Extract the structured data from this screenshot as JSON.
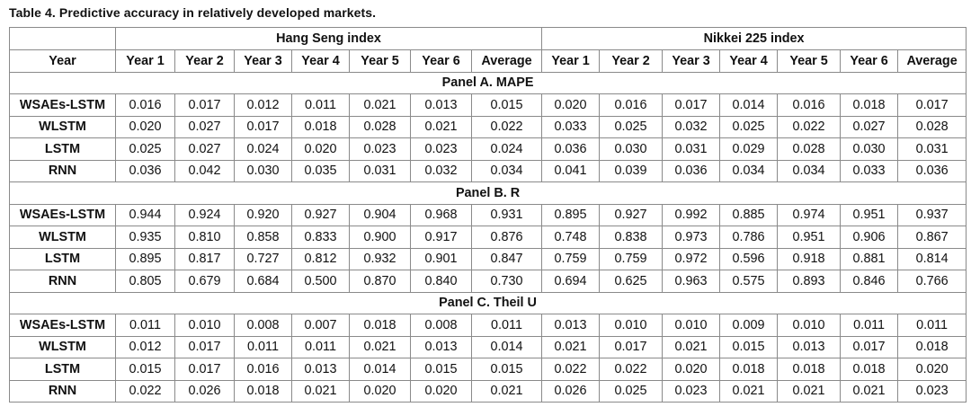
{
  "title": "Table 4.  Predictive accuracy in relatively developed markets.",
  "header": {
    "year_label": "Year",
    "groups": [
      "Hang Seng index",
      "Nikkei 225 index"
    ],
    "columns": [
      "Year 1",
      "Year 2",
      "Year 3",
      "Year 4",
      "Year 5",
      "Year 6",
      "Average",
      "Year 1",
      "Year 2",
      "Year 3",
      "Year 4",
      "Year 5",
      "Year 6",
      "Average"
    ]
  },
  "panels": [
    {
      "label": "Panel A. MAPE",
      "rows": [
        {
          "model": "WSAEs-LSTM",
          "values": [
            "0.016",
            "0.017",
            "0.012",
            "0.011",
            "0.021",
            "0.013",
            "0.015",
            "0.020",
            "0.016",
            "0.017",
            "0.014",
            "0.016",
            "0.018",
            "0.017"
          ]
        },
        {
          "model": "WLSTM",
          "values": [
            "0.020",
            "0.027",
            "0.017",
            "0.018",
            "0.028",
            "0.021",
            "0.022",
            "0.033",
            "0.025",
            "0.032",
            "0.025",
            "0.022",
            "0.027",
            "0.028"
          ]
        },
        {
          "model": "LSTM",
          "values": [
            "0.025",
            "0.027",
            "0.024",
            "0.020",
            "0.023",
            "0.023",
            "0.024",
            "0.036",
            "0.030",
            "0.031",
            "0.029",
            "0.028",
            "0.030",
            "0.031"
          ]
        },
        {
          "model": "RNN",
          "values": [
            "0.036",
            "0.042",
            "0.030",
            "0.035",
            "0.031",
            "0.032",
            "0.034",
            "0.041",
            "0.039",
            "0.036",
            "0.034",
            "0.034",
            "0.033",
            "0.036"
          ]
        }
      ]
    },
    {
      "label": "Panel B. R",
      "rows": [
        {
          "model": "WSAEs-LSTM",
          "values": [
            "0.944",
            "0.924",
            "0.920",
            "0.927",
            "0.904",
            "0.968",
            "0.931",
            "0.895",
            "0.927",
            "0.992",
            "0.885",
            "0.974",
            "0.951",
            "0.937"
          ]
        },
        {
          "model": "WLSTM",
          "values": [
            "0.935",
            "0.810",
            "0.858",
            "0.833",
            "0.900",
            "0.917",
            "0.876",
            "0.748",
            "0.838",
            "0.973",
            "0.786",
            "0.951",
            "0.906",
            "0.867"
          ]
        },
        {
          "model": "LSTM",
          "values": [
            "0.895",
            "0.817",
            "0.727",
            "0.812",
            "0.932",
            "0.901",
            "0.847",
            "0.759",
            "0.759",
            "0.972",
            "0.596",
            "0.918",
            "0.881",
            "0.814"
          ]
        },
        {
          "model": "RNN",
          "values": [
            "0.805",
            "0.679",
            "0.684",
            "0.500",
            "0.870",
            "0.840",
            "0.730",
            "0.694",
            "0.625",
            "0.963",
            "0.575",
            "0.893",
            "0.846",
            "0.766"
          ]
        }
      ]
    },
    {
      "label": "Panel C. Theil U",
      "rows": [
        {
          "model": "WSAEs-LSTM",
          "values": [
            "0.011",
            "0.010",
            "0.008",
            "0.007",
            "0.018",
            "0.008",
            "0.011",
            "0.013",
            "0.010",
            "0.010",
            "0.009",
            "0.010",
            "0.011",
            "0.011"
          ]
        },
        {
          "model": "WLSTM",
          "values": [
            "0.012",
            "0.017",
            "0.011",
            "0.011",
            "0.021",
            "0.013",
            "0.014",
            "0.021",
            "0.017",
            "0.021",
            "0.015",
            "0.013",
            "0.017",
            "0.018"
          ]
        },
        {
          "model": "LSTM",
          "values": [
            "0.015",
            "0.017",
            "0.016",
            "0.013",
            "0.014",
            "0.015",
            "0.015",
            "0.022",
            "0.022",
            "0.020",
            "0.018",
            "0.018",
            "0.018",
            "0.020"
          ]
        },
        {
          "model": "RNN",
          "values": [
            "0.022",
            "0.026",
            "0.018",
            "0.021",
            "0.020",
            "0.020",
            "0.021",
            "0.026",
            "0.025",
            "0.023",
            "0.021",
            "0.021",
            "0.021",
            "0.023"
          ]
        }
      ]
    }
  ]
}
